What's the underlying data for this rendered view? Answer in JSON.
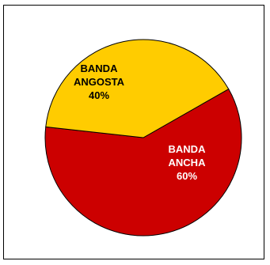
{
  "chart_data": {
    "type": "pie",
    "title": "",
    "categories": [
      "BANDA ANCHA",
      "BANDA ANGOSTA"
    ],
    "values": [
      60,
      40
    ],
    "colors": [
      "#CC0000",
      "#FFCC00"
    ],
    "labels": [
      {
        "lines": [
          "BANDA",
          "ANCHA",
          "60%"
        ],
        "color": "#ffffff"
      },
      {
        "lines": [
          "BANDA",
          "ANGOSTA",
          "40%"
        ],
        "color": "#000000"
      }
    ],
    "legend": "none",
    "border": true
  }
}
